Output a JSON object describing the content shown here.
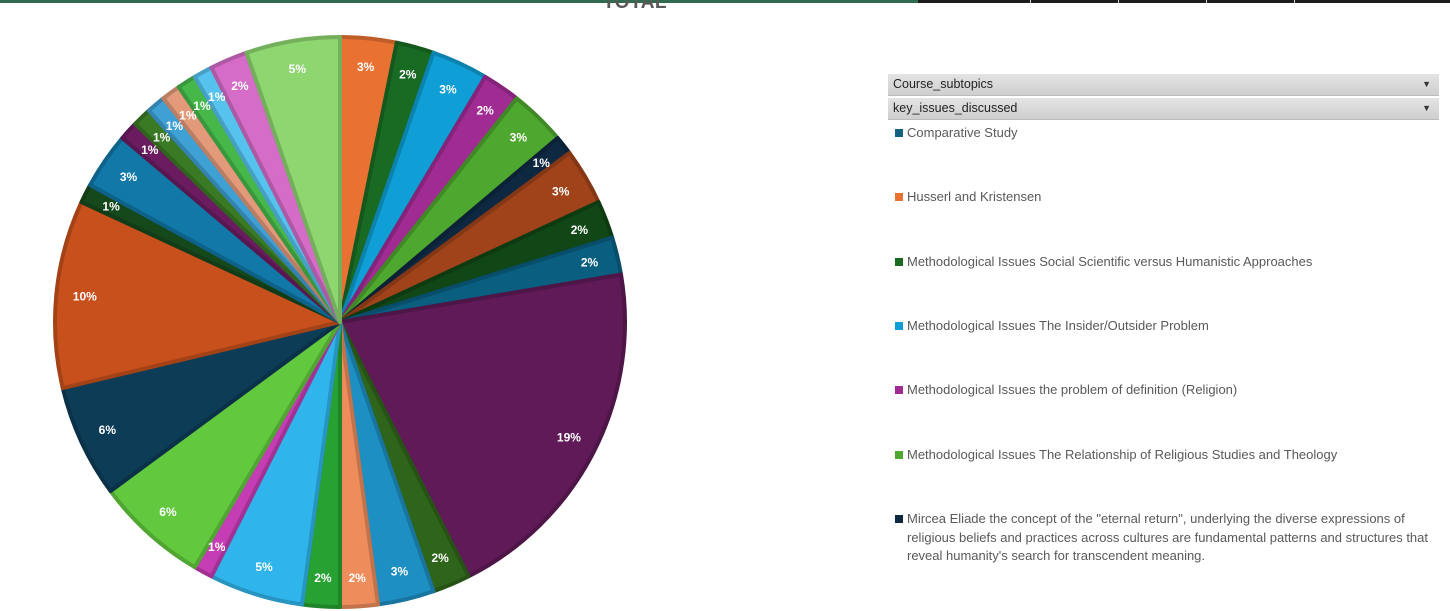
{
  "chart_data": {
    "type": "pie",
    "title": "TOTAL",
    "slices": [
      {
        "label": "3%",
        "value": 3,
        "color": "#e97132"
      },
      {
        "label": "2%",
        "value": 2,
        "color": "#196b24"
      },
      {
        "label": "3%",
        "value": 3,
        "color": "#0f9ed5"
      },
      {
        "label": "2%",
        "value": 2,
        "color": "#a02b93"
      },
      {
        "label": "3%",
        "value": 3,
        "color": "#4ea72e"
      },
      {
        "label": "1%",
        "value": 1,
        "color": "#0e2841"
      },
      {
        "label": "3%",
        "value": 3,
        "color": "#a0431a"
      },
      {
        "label": "2%",
        "value": 2,
        "color": "#114716"
      },
      {
        "label": "2%",
        "value": 2,
        "color": "#0a5e80"
      },
      {
        "label": "19%",
        "value": 19,
        "color": "#5f1a57"
      },
      {
        "label": "2%",
        "value": 2,
        "color": "#2f641b"
      },
      {
        "label": "3%",
        "value": 3,
        "color": "#1d8fc2"
      },
      {
        "label": "2%",
        "value": 2,
        "color": "#ee8c5c"
      },
      {
        "label": "2%",
        "value": 2,
        "color": "#27a132"
      },
      {
        "label": "5%",
        "value": 5,
        "color": "#2fb5ec"
      },
      {
        "label": "1%",
        "value": 1,
        "color": "#c43db5"
      },
      {
        "label": "6%",
        "value": 6,
        "color": "#62c93e"
      },
      {
        "label": "6%",
        "value": 6,
        "color": "#0c3c56"
      },
      {
        "label": "10%",
        "value": 10,
        "color": "#c8501c"
      },
      {
        "label": "1%",
        "value": 1,
        "color": "#15491c"
      },
      {
        "label": "3%",
        "value": 3,
        "color": "#1178a8"
      },
      {
        "label": "1%",
        "value": 1,
        "color": "#6b1c61"
      },
      {
        "label": "1%",
        "value": 1,
        "color": "#3b7a25"
      },
      {
        "label": "1%",
        "value": 1,
        "color": "#3fa0d4"
      },
      {
        "label": "1%",
        "value": 1,
        "color": "#e39a7a"
      },
      {
        "label": "1%",
        "value": 1,
        "color": "#46b84a"
      },
      {
        "label": "1%",
        "value": 1,
        "color": "#56c2ee"
      },
      {
        "label": "2%",
        "value": 2,
        "color": "#d46cc8"
      },
      {
        "label": "5%",
        "value": 5,
        "color": "#8dd670"
      }
    ]
  },
  "legend": {
    "filters": [
      {
        "label": "Course_subtopics"
      },
      {
        "label": "key_issues_discussed"
      }
    ],
    "items": [
      {
        "label": "Comparative Study",
        "color": "#156082"
      },
      {
        "label": "Husserl and Kristensen",
        "color": "#e97132"
      },
      {
        "label": "Methodological Issues Social Scientific versus Humanistic Approaches",
        "color": "#196b24"
      },
      {
        "label": "Methodological Issues The Insider/Outsider Problem",
        "color": "#0f9ed5"
      },
      {
        "label": "Methodological Issues the problem of definition (Religion)",
        "color": "#a02b93"
      },
      {
        "label": "Methodological Issues The Relationship of Religious Studies and Theology",
        "color": "#4ea72e"
      },
      {
        "label": "Mircea Eliade the concept of the \"eternal return\", underlying the diverse expressions of religious beliefs and practices across cultures are fundamental patterns and structures that reveal humanity's search for transcendent meaning.",
        "color": "#0e2841"
      }
    ]
  }
}
